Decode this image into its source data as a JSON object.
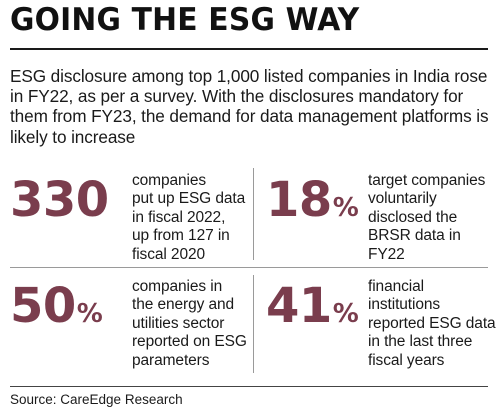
{
  "title": "GOING THE ESG WAY",
  "intro": "ESG disclosure among top 1,000 listed companies in India rose in FY22, as per a survey. With the disclosures mandatory for them from FY23, the demand for data management platforms is likely to increase",
  "stats": [
    {
      "value": "330",
      "unit": "",
      "lines": [
        "companies",
        "put up ESG data",
        "in fiscal 2022,",
        "up from 127 in",
        "fiscal 2020"
      ]
    },
    {
      "value": "18",
      "unit": "%",
      "lines": [
        "target companies",
        "voluntarily",
        "disclosed the",
        "BRSR data in",
        "FY22"
      ]
    },
    {
      "value": "50",
      "unit": "%",
      "lines": [
        "companies in",
        "the energy and",
        "utilities sector",
        "reported on ESG",
        "parameters"
      ]
    },
    {
      "value": "41",
      "unit": "%",
      "lines": [
        "financial",
        "institutions",
        "reported ESG data",
        "in the last three",
        "fiscal years"
      ]
    }
  ],
  "source": "Source: CareEdge Research",
  "colors": {
    "accent": "#7a3d4d",
    "text": "#1a1a1a",
    "divider": "#9a9a9a"
  }
}
